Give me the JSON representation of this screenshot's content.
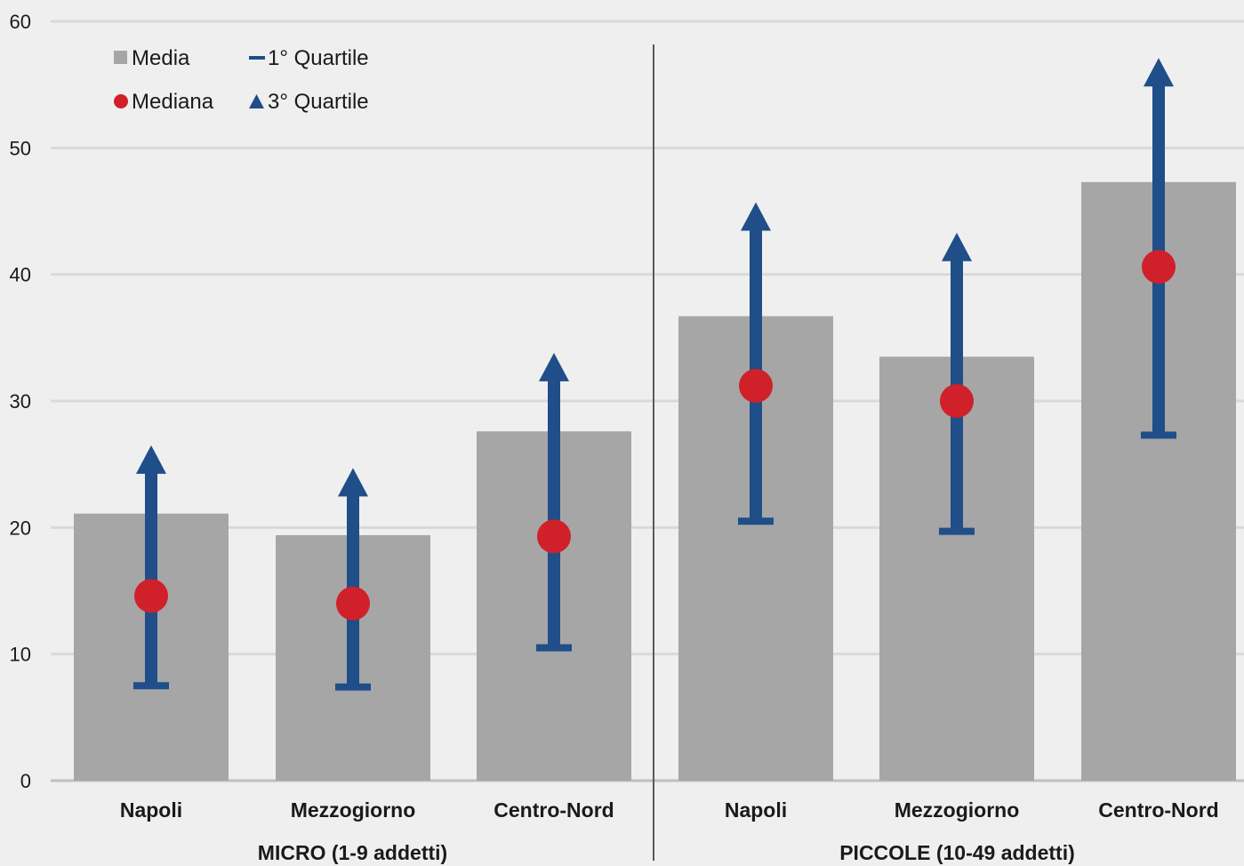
{
  "chart_data": {
    "type": "bar",
    "ylim": [
      0,
      60
    ],
    "yticks": [
      0,
      10,
      20,
      30,
      40,
      50,
      60
    ],
    "grid": true,
    "legend_position": "top-left",
    "groups": [
      {
        "label": "MICRO (1-9 addetti)",
        "categories": [
          "Napoli",
          "Mezzogiorno",
          "Centro-Nord"
        ]
      },
      {
        "label": "PICCOLE (10-49 addetti)",
        "categories": [
          "Napoli",
          "Mezzogiorno",
          "Centro-Nord"
        ]
      }
    ],
    "series": [
      {
        "name": "Media",
        "kind": "bar",
        "values": [
          21.1,
          19.4,
          27.6,
          36.7,
          33.5,
          47.3
        ]
      },
      {
        "name": "Mediana",
        "kind": "point",
        "values": [
          14.6,
          14.0,
          19.3,
          31.2,
          30.0,
          40.6
        ]
      },
      {
        "name": "1° Quartile",
        "kind": "dash",
        "values": [
          7.5,
          7.4,
          10.5,
          20.5,
          19.7,
          27.3
        ]
      },
      {
        "name": "3° Quartile",
        "kind": "triangle",
        "values": [
          26.5,
          24.7,
          33.8,
          45.7,
          43.3,
          57.1
        ]
      }
    ],
    "colors": {
      "bar": "#a6a6a6",
      "median": "#d0202a",
      "quartile": "#1f4e89",
      "grid": "#d9d9d9",
      "separator": "#595959",
      "axis": "#bfbfbf"
    }
  }
}
